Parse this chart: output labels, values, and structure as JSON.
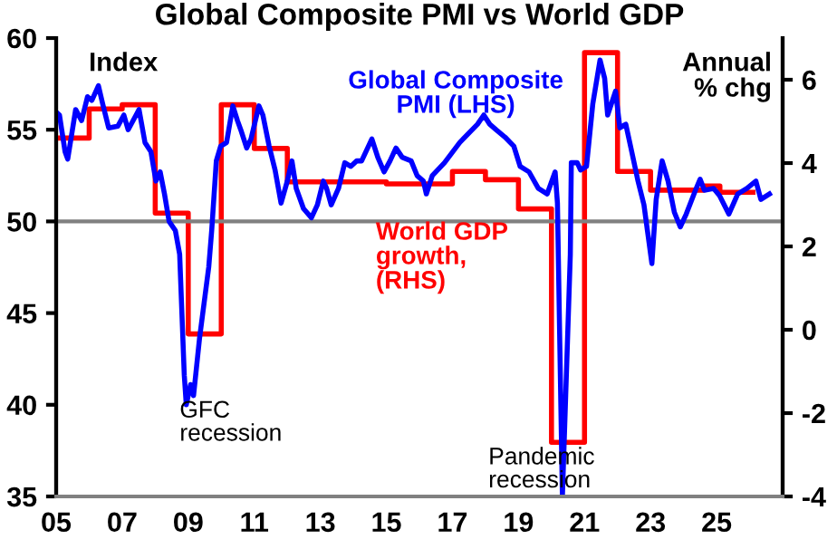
{
  "chart_data": {
    "type": "line",
    "title": "Global Composite PMI vs World GDP",
    "annotations": [
      "Index",
      "Annual\n% chg",
      "GFC\nrecession",
      "Pandemic\nrecession"
    ],
    "xlim": [
      2005,
      2027
    ],
    "xticks": [
      {
        "value": 2005,
        "label": "05"
      },
      {
        "value": 2007,
        "label": "07"
      },
      {
        "value": 2009,
        "label": "09"
      },
      {
        "value": 2011,
        "label": "11"
      },
      {
        "value": 2013,
        "label": "13"
      },
      {
        "value": 2015,
        "label": "15"
      },
      {
        "value": 2017,
        "label": "17"
      },
      {
        "value": 2019,
        "label": "19"
      },
      {
        "value": 2021,
        "label": "21"
      },
      {
        "value": 2023,
        "label": "23"
      },
      {
        "value": 2025,
        "label": "25"
      }
    ],
    "ylim": [
      35,
      60
    ],
    "yticks": [
      35,
      40,
      45,
      50,
      55,
      60
    ],
    "y2lim": [
      -4,
      7
    ],
    "y2ticks": [
      -4,
      -2,
      0,
      2,
      4,
      6
    ],
    "ref_lines": [
      {
        "axis": "y",
        "value": 50,
        "color": "#808080"
      }
    ],
    "grid": false,
    "series": [
      {
        "name": "Global Composite\nPMI (LHS)",
        "color": "#0000ff",
        "x": [
          2005.04,
          2005.1,
          2005.27,
          2005.35,
          2005.59,
          2005.77,
          2005.95,
          2006.08,
          2006.28,
          2006.41,
          2006.59,
          2006.87,
          2007.05,
          2007.18,
          2007.42,
          2007.51,
          2007.69,
          2007.87,
          2008.02,
          2008.15,
          2008.28,
          2008.42,
          2008.61,
          2008.74,
          2008.88,
          2008.94,
          2009.07,
          2009.16,
          2009.34,
          2009.62,
          2009.71,
          2009.85,
          2009.98,
          2010.16,
          2010.35,
          2010.49,
          2010.59,
          2010.77,
          2010.9,
          2011.14,
          2011.26,
          2011.45,
          2011.63,
          2011.81,
          2012.0,
          2012.14,
          2012.27,
          2012.49,
          2012.73,
          2012.91,
          2013.09,
          2013.19,
          2013.33,
          2013.55,
          2013.74,
          2013.92,
          2014.1,
          2014.25,
          2014.56,
          2014.74,
          2014.93,
          2015.11,
          2015.29,
          2015.48,
          2015.75,
          2015.93,
          2016.12,
          2016.21,
          2016.39,
          2016.76,
          2017.22,
          2017.76,
          2017.95,
          2018.13,
          2018.32,
          2018.59,
          2018.86,
          2019.05,
          2019.32,
          2019.6,
          2019.87,
          2020.11,
          2020.18,
          2020.33,
          2020.57,
          2020.6,
          2020.78,
          2020.88,
          2021.06,
          2021.25,
          2021.47,
          2021.61,
          2021.7,
          2021.94,
          2022.07,
          2022.25,
          2022.43,
          2022.62,
          2022.8,
          2023.04,
          2023.17,
          2023.35,
          2023.53,
          2023.72,
          2023.9,
          2024.08,
          2024.36,
          2024.5,
          2024.63,
          2024.91,
          2025.09,
          2025.37,
          2025.64,
          2025.92,
          2026.19,
          2026.34,
          2026.6
        ],
        "values": [
          55.9,
          55.8,
          53.8,
          53.4,
          56.1,
          55.5,
          56.8,
          56.6,
          57.4,
          56.4,
          55.1,
          55.2,
          55.8,
          55.0,
          55.8,
          56.1,
          54.3,
          53.8,
          52.2,
          52.7,
          51.5,
          50.0,
          49.5,
          48.2,
          41.6,
          40.0,
          41.1,
          40.5,
          43.6,
          47.5,
          49.5,
          53.3,
          54.1,
          54.3,
          56.3,
          55.5,
          55.0,
          54.0,
          54.5,
          56.3,
          55.8,
          54.1,
          52.8,
          51.0,
          52.2,
          53.3,
          51.8,
          50.7,
          50.2,
          50.9,
          52.2,
          51.8,
          50.9,
          51.8,
          53.2,
          53.0,
          53.3,
          53.3,
          54.5,
          53.5,
          52.7,
          53.3,
          54.0,
          53.5,
          53.3,
          52.5,
          52.2,
          51.5,
          52.5,
          53.2,
          54.3,
          55.3,
          55.8,
          55.3,
          55.0,
          54.6,
          54.1,
          53.0,
          52.7,
          51.8,
          51.5,
          52.7,
          51.0,
          35.0,
          48.2,
          53.2,
          53.2,
          52.8,
          53.0,
          56.4,
          58.8,
          57.8,
          55.8,
          57.1,
          55.1,
          55.3,
          53.8,
          52.2,
          50.9,
          47.7,
          51.2,
          53.3,
          52.2,
          50.5,
          49.7,
          50.4,
          51.7,
          52.3,
          51.7,
          51.8,
          51.4,
          50.4,
          51.5,
          51.8,
          52.2,
          51.2,
          51.5
        ]
      },
      {
        "name": "World GDP\ngrowth,\n(RHS)",
        "color": "#ff0000",
        "type": "step",
        "axis": "y2",
        "x": [
          2005,
          2006,
          2007,
          2008,
          2009,
          2010,
          2011,
          2012,
          2015,
          2017,
          2018,
          2019,
          2020,
          2021,
          2022,
          2023,
          2024.6,
          2025.1,
          2026.1
        ],
        "values": [
          4.6,
          5.3,
          5.4,
          2.8,
          -0.1,
          5.4,
          4.35,
          3.55,
          3.5,
          3.8,
          3.6,
          2.9,
          -2.7,
          6.65,
          3.8,
          3.35,
          3.45,
          3.3,
          3.3
        ]
      }
    ]
  }
}
